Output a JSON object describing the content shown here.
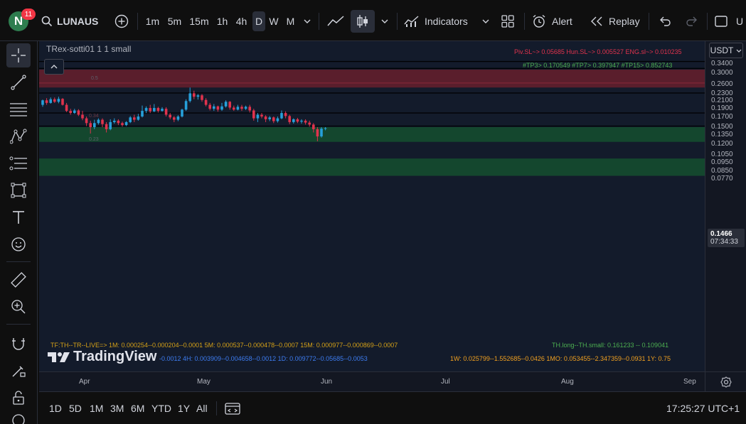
{
  "header": {
    "avatar_letter": "N",
    "notification_count": "11",
    "symbol": "LUNAUSD",
    "timeframes": [
      "1m",
      "5m",
      "15m",
      "1h",
      "4h",
      "D",
      "W",
      "M"
    ],
    "active_timeframe": "D",
    "indicators_label": "Indicators",
    "alert_label": "Alert",
    "replay_label": "Replay",
    "cut_label": "U"
  },
  "chart": {
    "indicator_title": "TRex-sotti01 1 1 small",
    "currency": "USDT",
    "sl_line": "Piv.SL~> 0.05685  Hun.SL~> 0.005527  ENG.sl~> 0.010235",
    "tp_line": "#TP3> 0.170549  #TP7> 0.397947  #TP15> 0.852743",
    "level_labels": [
      "0.5",
      "0.34",
      "0.23"
    ],
    "tf_line1": "TF:TH--TR--LIVE=>   1M: 0.000254--0.000204--0.0001     5M: 0.000537--0.000478--0.0007     15M: 0.000977--0.000869--0.0007",
    "tf_line2": "--0.0012      4H: 0.003909--0.004658--0.0012      1D: 0.009772--0.05685--0.0053",
    "tf_line3": "1W: 0.025799--1.552685--0.0426     1MO: 0.053455--2.347359--0.0931     1Y: 0.75",
    "th_line": "TH.long--TH.small: 0.161233 -- 0.109041",
    "watermark": "TradingView",
    "price_ticks": [
      "0.3400",
      "0.3000",
      "0.2600",
      "0.2300",
      "0.2100",
      "0.1900",
      "0.1700",
      "0.1500",
      "0.1350",
      "0.1200",
      "0.1050",
      "0.0950",
      "0.0850",
      "0.0770"
    ],
    "current_price": "0.1466",
    "countdown": "07:34:33",
    "time_labels": [
      "Apr",
      "May",
      "Jun",
      "Jul",
      "Aug",
      "Sep"
    ]
  },
  "bottom": {
    "ranges": [
      "1D",
      "5D",
      "1M",
      "3M",
      "6M",
      "YTD",
      "1Y",
      "All"
    ],
    "clock": "17:25:27 UTC+1"
  },
  "colors": {
    "up": "#26a0da",
    "down": "#e0334d",
    "red_zone": "#5a1e2c",
    "green_zone": "#14472e"
  },
  "chart_data": {
    "type": "candlestick",
    "x_axis": [
      "Apr",
      "May",
      "Jun",
      "Jul",
      "Aug",
      "Sep"
    ],
    "y_scale": "log",
    "ylim": [
      0.074,
      0.36
    ],
    "zones": [
      {
        "kind": "red",
        "from": 0.25,
        "to": 0.315
      },
      {
        "kind": "green",
        "from": 0.124,
        "to": 0.15
      },
      {
        "kind": "green",
        "from": 0.08,
        "to": 0.1
      }
    ],
    "horizontal_lines": [
      0.35,
      0.32,
      0.233,
      0.18,
      0.152
    ],
    "candles": [
      [
        0.2,
        0.212,
        0.214,
        0.195
      ],
      [
        0.212,
        0.205,
        0.218,
        0.2
      ],
      [
        0.205,
        0.215,
        0.22,
        0.203
      ],
      [
        0.215,
        0.208,
        0.22,
        0.205
      ],
      [
        0.208,
        0.216,
        0.222,
        0.204
      ],
      [
        0.216,
        0.2,
        0.218,
        0.198
      ],
      [
        0.2,
        0.185,
        0.205,
        0.182
      ],
      [
        0.185,
        0.18,
        0.19,
        0.176
      ],
      [
        0.18,
        0.186,
        0.19,
        0.178
      ],
      [
        0.186,
        0.176,
        0.189,
        0.173
      ],
      [
        0.176,
        0.168,
        0.185,
        0.164
      ],
      [
        0.168,
        0.158,
        0.172,
        0.152
      ],
      [
        0.158,
        0.15,
        0.163,
        0.138
      ],
      [
        0.15,
        0.158,
        0.165,
        0.146
      ],
      [
        0.158,
        0.165,
        0.168,
        0.155
      ],
      [
        0.165,
        0.156,
        0.168,
        0.15
      ],
      [
        0.156,
        0.146,
        0.16,
        0.14
      ],
      [
        0.146,
        0.16,
        0.166,
        0.144
      ],
      [
        0.16,
        0.163,
        0.168,
        0.157
      ],
      [
        0.163,
        0.158,
        0.166,
        0.154
      ],
      [
        0.158,
        0.154,
        0.161,
        0.151
      ],
      [
        0.154,
        0.16,
        0.162,
        0.152
      ],
      [
        0.16,
        0.17,
        0.173,
        0.158
      ],
      [
        0.17,
        0.165,
        0.176,
        0.16
      ],
      [
        0.165,
        0.172,
        0.178,
        0.163
      ],
      [
        0.172,
        0.185,
        0.198,
        0.17
      ],
      [
        0.185,
        0.192,
        0.196,
        0.18
      ],
      [
        0.192,
        0.184,
        0.2,
        0.18
      ],
      [
        0.184,
        0.192,
        0.202,
        0.182
      ],
      [
        0.192,
        0.185,
        0.195,
        0.181
      ],
      [
        0.185,
        0.19,
        0.194,
        0.183
      ],
      [
        0.19,
        0.176,
        0.194,
        0.172
      ],
      [
        0.176,
        0.17,
        0.18,
        0.166
      ],
      [
        0.17,
        0.165,
        0.173,
        0.16
      ],
      [
        0.165,
        0.172,
        0.175,
        0.162
      ],
      [
        0.172,
        0.188,
        0.19,
        0.17
      ],
      [
        0.188,
        0.21,
        0.215,
        0.185
      ],
      [
        0.21,
        0.232,
        0.25,
        0.206
      ],
      [
        0.232,
        0.222,
        0.24,
        0.215
      ],
      [
        0.222,
        0.226,
        0.23,
        0.214
      ],
      [
        0.226,
        0.213,
        0.23,
        0.208
      ],
      [
        0.213,
        0.2,
        0.218,
        0.196
      ],
      [
        0.2,
        0.19,
        0.205,
        0.186
      ],
      [
        0.19,
        0.196,
        0.202,
        0.185
      ],
      [
        0.196,
        0.188,
        0.198,
        0.183
      ],
      [
        0.188,
        0.196,
        0.205,
        0.185
      ],
      [
        0.196,
        0.208,
        0.212,
        0.193
      ],
      [
        0.208,
        0.193,
        0.21,
        0.188
      ],
      [
        0.193,
        0.188,
        0.198,
        0.185
      ],
      [
        0.188,
        0.195,
        0.2,
        0.186
      ],
      [
        0.195,
        0.19,
        0.2,
        0.185
      ],
      [
        0.19,
        0.195,
        0.198,
        0.187
      ],
      [
        0.195,
        0.186,
        0.2,
        0.181
      ],
      [
        0.186,
        0.168,
        0.19,
        0.163
      ],
      [
        0.168,
        0.176,
        0.18,
        0.16
      ],
      [
        0.176,
        0.172,
        0.18,
        0.168
      ],
      [
        0.172,
        0.166,
        0.175,
        0.16
      ],
      [
        0.166,
        0.17,
        0.173,
        0.162
      ],
      [
        0.17,
        0.162,
        0.172,
        0.158
      ],
      [
        0.162,
        0.168,
        0.172,
        0.159
      ],
      [
        0.168,
        0.18,
        0.186,
        0.166
      ],
      [
        0.18,
        0.173,
        0.184,
        0.168
      ],
      [
        0.173,
        0.16,
        0.176,
        0.156
      ],
      [
        0.16,
        0.166,
        0.168,
        0.157
      ],
      [
        0.166,
        0.161,
        0.169,
        0.158
      ],
      [
        0.161,
        0.163,
        0.166,
        0.157
      ],
      [
        0.163,
        0.159,
        0.166,
        0.155
      ],
      [
        0.159,
        0.155,
        0.163,
        0.151
      ],
      [
        0.155,
        0.146,
        0.158,
        0.14
      ],
      [
        0.146,
        0.133,
        0.15,
        0.125
      ],
      [
        0.133,
        0.147,
        0.15,
        0.131
      ],
      [
        0.147,
        0.148,
        0.15,
        0.144
      ]
    ]
  }
}
